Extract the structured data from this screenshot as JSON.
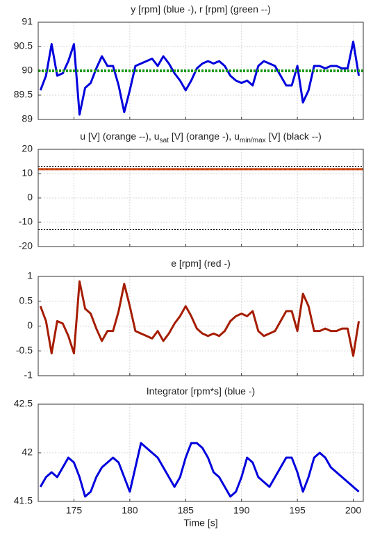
{
  "chart_data": [
    {
      "type": "line",
      "title": [
        {
          "text": "y [rpm] (blue -), r [rpm] (green --)"
        }
      ],
      "x": [
        172,
        172.5,
        173,
        173.5,
        174,
        174.5,
        175,
        175.5,
        176,
        176.5,
        177,
        177.5,
        178,
        178.5,
        179,
        179.5,
        180,
        180.5,
        181,
        181.5,
        182,
        182.5,
        183,
        183.5,
        184,
        184.5,
        185,
        185.5,
        186,
        186.5,
        187,
        187.5,
        188,
        188.5,
        189,
        189.5,
        190,
        190.5,
        191,
        191.5,
        192,
        192.5,
        193,
        193.5,
        194,
        194.5,
        195,
        195.5,
        196,
        196.5,
        197,
        197.5,
        198,
        198.5,
        199,
        199.5,
        200,
        200.5
      ],
      "series": [
        {
          "color": "#0000dd",
          "width": 3,
          "values": [
            89.6,
            89.9,
            90.55,
            89.9,
            89.95,
            90.2,
            90.55,
            89.1,
            89.65,
            89.75,
            90.05,
            90.3,
            90.1,
            90.1,
            89.7,
            89.15,
            89.6,
            90.1,
            90.15,
            90.2,
            90.25,
            90.1,
            90.3,
            90.15,
            89.95,
            89.8,
            89.6,
            89.8,
            90.05,
            90.15,
            90.2,
            90.15,
            90.2,
            90.1,
            89.9,
            89.8,
            89.75,
            89.8,
            89.7,
            90.1,
            90.2,
            90.15,
            90.1,
            89.9,
            89.7,
            89.7,
            90.1,
            89.35,
            89.6,
            90.1,
            90.1,
            90.05,
            90.1,
            90.1,
            90.05,
            90.05,
            90.6,
            89.9
          ]
        },
        {
          "color": "#1a9a1a",
          "width": 4,
          "dash": "3,2",
          "x": [
            171.8,
            200.9
          ],
          "values": [
            90,
            90
          ]
        }
      ],
      "xlim": [
        171.8,
        200.9
      ],
      "xticks": [
        175,
        180,
        185,
        190,
        195,
        200
      ],
      "ylim": [
        89,
        91
      ],
      "yticks": [
        89,
        89.5,
        90,
        90.5,
        91
      ],
      "grid": true
    },
    {
      "type": "line",
      "title": [
        {
          "text": "u [V] (orange --), u"
        },
        {
          "text": "sat",
          "sub": true
        },
        {
          "text": " [V] (orange -), u"
        },
        {
          "text": "min/max",
          "sub": true
        },
        {
          "text": " [V] (black --)"
        }
      ],
      "series": [
        {
          "color": "#c0390b",
          "width": 3,
          "x": [
            171.8,
            200.9
          ],
          "values": [
            11.8,
            11.8
          ]
        },
        {
          "color": "#e06010",
          "width": 1.5,
          "dash": "4,3",
          "x": [
            171.8,
            200.9
          ],
          "values": [
            11.8,
            11.8
          ]
        },
        {
          "color": "#000000",
          "width": 1,
          "dash": "2,2",
          "x": [
            171.8,
            200.9
          ],
          "values": [
            13,
            13
          ]
        },
        {
          "color": "#000000",
          "width": 1,
          "dash": "2,2",
          "x": [
            171.8,
            200.9
          ],
          "values": [
            -13,
            -13
          ]
        }
      ],
      "xlim": [
        171.8,
        200.9
      ],
      "xticks": [
        175,
        180,
        185,
        190,
        195,
        200
      ],
      "ylim": [
        -20,
        20
      ],
      "yticks": [
        -20,
        -10,
        0,
        10,
        20
      ],
      "grid": true
    },
    {
      "type": "line",
      "title": [
        {
          "text": "e [rpm] (red -)"
        }
      ],
      "x": [
        172,
        172.5,
        173,
        173.5,
        174,
        174.5,
        175,
        175.5,
        176,
        176.5,
        177,
        177.5,
        178,
        178.5,
        179,
        179.5,
        180,
        180.5,
        181,
        181.5,
        182,
        182.5,
        183,
        183.5,
        184,
        184.5,
        185,
        185.5,
        186,
        186.5,
        187,
        187.5,
        188,
        188.5,
        189,
        189.5,
        190,
        190.5,
        191,
        191.5,
        192,
        192.5,
        193,
        193.5,
        194,
        194.5,
        195,
        195.5,
        196,
        196.5,
        197,
        197.5,
        198,
        198.5,
        199,
        199.5,
        200,
        200.5
      ],
      "series": [
        {
          "color": "#a51c00",
          "width": 3,
          "values": [
            0.4,
            0.1,
            -0.55,
            0.1,
            0.05,
            -0.2,
            -0.55,
            0.9,
            0.35,
            0.25,
            -0.05,
            -0.3,
            -0.1,
            -0.1,
            0.3,
            0.85,
            0.4,
            -0.1,
            -0.15,
            -0.2,
            -0.25,
            -0.1,
            -0.3,
            -0.15,
            0.05,
            0.2,
            0.4,
            0.2,
            -0.05,
            -0.15,
            -0.2,
            -0.15,
            -0.2,
            -0.1,
            0.1,
            0.2,
            0.25,
            0.2,
            0.3,
            -0.1,
            -0.2,
            -0.15,
            -0.1,
            0.1,
            0.3,
            0.3,
            -0.1,
            0.65,
            0.4,
            -0.1,
            -0.1,
            -0.05,
            -0.1,
            -0.1,
            -0.05,
            -0.05,
            -0.6,
            0.1
          ]
        }
      ],
      "xlim": [
        171.8,
        200.9
      ],
      "xticks": [
        175,
        180,
        185,
        190,
        195,
        200
      ],
      "ylim": [
        -1,
        1
      ],
      "yticks": [
        -1,
        -0.5,
        0,
        0.5,
        1
      ],
      "grid": true
    },
    {
      "type": "line",
      "title": [
        {
          "text": "Integrator [rpm*s] (blue -)"
        }
      ],
      "xlabel": "Time [s]",
      "x": [
        172,
        172.5,
        173,
        173.5,
        174,
        174.5,
        175,
        175.5,
        176,
        176.5,
        177,
        177.5,
        178,
        178.5,
        179,
        179.5,
        180,
        180.5,
        181,
        181.5,
        182,
        182.5,
        183,
        183.5,
        184,
        184.5,
        185,
        185.5,
        186,
        186.5,
        187,
        187.5,
        188,
        188.5,
        189,
        189.5,
        190,
        190.5,
        191,
        191.5,
        192,
        192.5,
        193,
        193.5,
        194,
        194.5,
        195,
        195.5,
        196,
        196.5,
        197,
        197.5,
        198,
        198.5,
        199,
        199.5,
        200,
        200.5
      ],
      "series": [
        {
          "color": "#0000dd",
          "width": 3,
          "values": [
            41.65,
            41.75,
            41.8,
            41.75,
            41.85,
            41.95,
            41.9,
            41.75,
            41.55,
            41.6,
            41.75,
            41.85,
            41.9,
            41.95,
            41.9,
            41.75,
            41.6,
            41.85,
            42.1,
            42.05,
            42.0,
            41.95,
            41.85,
            41.75,
            41.65,
            41.75,
            41.95,
            42.1,
            42.1,
            42.05,
            41.95,
            41.8,
            41.75,
            41.65,
            41.55,
            41.6,
            41.75,
            41.95,
            41.9,
            41.75,
            41.7,
            41.65,
            41.75,
            41.85,
            41.95,
            41.95,
            41.8,
            41.6,
            41.75,
            41.95,
            42.0,
            41.95,
            41.85,
            41.8,
            41.75,
            41.7,
            41.65,
            41.6
          ]
        }
      ],
      "xlim": [
        171.8,
        200.9
      ],
      "xticks": [
        175,
        180,
        185,
        190,
        195,
        200
      ],
      "ylim": [
        41.5,
        42.5
      ],
      "yticks": [
        41.5,
        42,
        42.5
      ],
      "grid": true
    }
  ]
}
